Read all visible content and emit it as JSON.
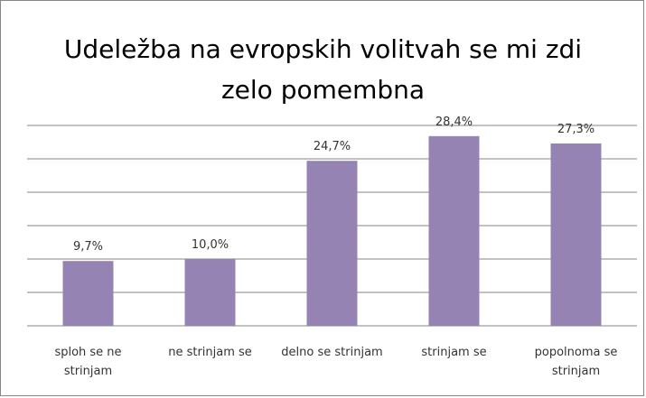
{
  "chart_data": {
    "type": "bar",
    "title": "Udeležba na evropskih volitvah se mi zdi zelo pomembna",
    "categories": [
      "sploh se ne strinjam",
      "ne strinjam se",
      "delno se strinjam",
      "strinjam se",
      "popolnoma se strinjam"
    ],
    "values": [
      9.7,
      10.0,
      24.7,
      28.4,
      27.3
    ],
    "value_labels": [
      "9,7%",
      "10,0%",
      "24,7%",
      "28,4%",
      "27,3%"
    ],
    "color": "#9583b4",
    "ylim": [
      0,
      30
    ],
    "yticks": [
      0,
      5,
      10,
      15,
      20,
      25,
      30
    ],
    "grid": true
  }
}
